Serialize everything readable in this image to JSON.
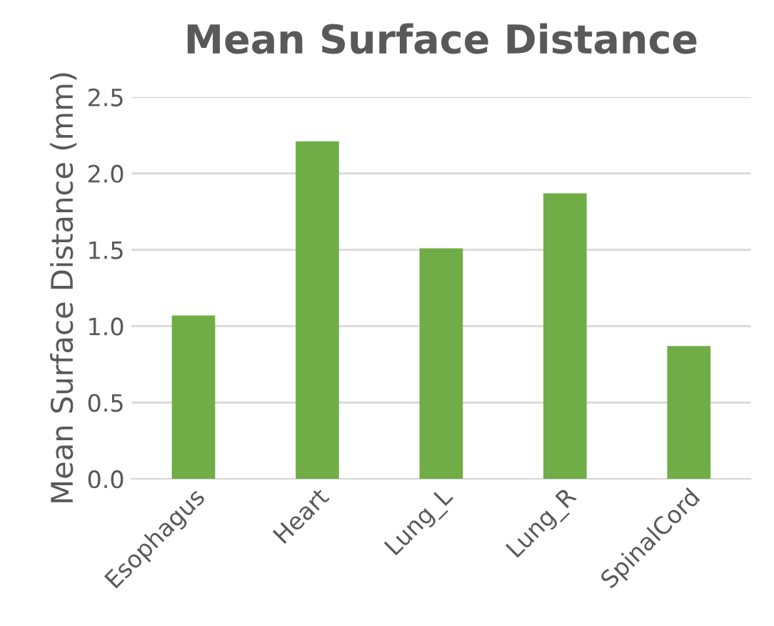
{
  "chart_data": {
    "type": "bar",
    "title": "Mean Surface Distance",
    "ylabel": "Mean Surface Distance (mm)",
    "categories": [
      "Esophagus",
      "Heart",
      "Lung_L",
      "Lung_R",
      "SpinalCord"
    ],
    "values": [
      1.07,
      2.21,
      1.51,
      1.87,
      0.87
    ],
    "color": "#70ad47",
    "ylim": [
      0,
      2.5
    ],
    "yticks": [
      {
        "value": 0,
        "label": "0.0"
      },
      {
        "value": 0.5,
        "label": "0.5"
      },
      {
        "value": 1,
        "label": "1.0"
      },
      {
        "value": 1.5,
        "label": "1.5"
      },
      {
        "value": 2,
        "label": "2.0"
      },
      {
        "value": 2.5,
        "label": "2.5"
      }
    ],
    "grid": "y"
  }
}
